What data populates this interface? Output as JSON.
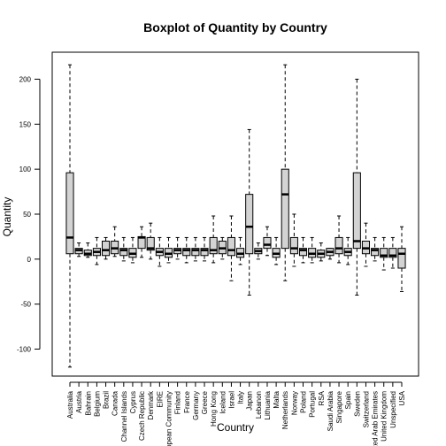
{
  "chart_data": {
    "type": "boxplot",
    "title": "Boxplot of Quantity by Country",
    "xlabel": "Country",
    "ylabel": "Quantity",
    "ylim": [
      -130,
      230
    ],
    "yticks": [
      -100,
      -50,
      0,
      50,
      100,
      150,
      200
    ],
    "box_color": "#d3d3d3",
    "categories": [
      "Australia",
      "Austria",
      "Bahrain",
      "Belgium",
      "Brazil",
      "Canada",
      "Channel Islands",
      "Cyprus",
      "Czech Republic",
      "Denmark",
      "EIRE",
      "European Community",
      "Finland",
      "France",
      "Germany",
      "Greece",
      "Hong Kong",
      "Iceland",
      "Israel",
      "Italy",
      "Japan",
      "Lebanon",
      "Lithuania",
      "Malta",
      "Netherlands",
      "Norway",
      "Poland",
      "Portugal",
      "RSA",
      "Saudi Arabia",
      "Singapore",
      "Spain",
      "Sweden",
      "Switzerland",
      "United Arab Emirates",
      "United Kingdom",
      "Unspecified",
      "USA"
    ],
    "boxes": [
      {
        "whisker_low": -120,
        "q1": 6,
        "median": 24,
        "q3": 96,
        "whisker_high": 216
      },
      {
        "whisker_low": 3,
        "q1": 6,
        "median": 10,
        "q3": 12,
        "whisker_high": 18
      },
      {
        "whisker_low": 2,
        "q1": 4,
        "median": 6,
        "q3": 10,
        "whisker_high": 18
      },
      {
        "whisker_low": -6,
        "q1": 4,
        "median": 8,
        "q3": 12,
        "whisker_high": 24
      },
      {
        "whisker_low": 0,
        "q1": 4,
        "median": 10,
        "q3": 20,
        "whisker_high": 24
      },
      {
        "whisker_low": 3,
        "q1": 6,
        "median": 12,
        "q3": 20,
        "whisker_high": 36
      },
      {
        "whisker_low": -2,
        "q1": 4,
        "median": 10,
        "q3": 12,
        "whisker_high": 24
      },
      {
        "whisker_low": -4,
        "q1": 2,
        "median": 6,
        "q3": 12,
        "whisker_high": 24
      },
      {
        "whisker_low": 2,
        "q1": 12,
        "median": 24,
        "q3": 25,
        "whisker_high": 36
      },
      {
        "whisker_low": 0,
        "q1": 10,
        "median": 12,
        "q3": 24,
        "whisker_high": 40
      },
      {
        "whisker_low": -8,
        "q1": 4,
        "median": 8,
        "q3": 12,
        "whisker_high": 24
      },
      {
        "whisker_low": -4,
        "q1": 2,
        "median": 6,
        "q3": 12,
        "whisker_high": 24
      },
      {
        "whisker_low": 0,
        "q1": 6,
        "median": 10,
        "q3": 12,
        "whisker_high": 24
      },
      {
        "whisker_low": -4,
        "q1": 4,
        "median": 10,
        "q3": 12,
        "whisker_high": 24
      },
      {
        "whisker_low": -2,
        "q1": 4,
        "median": 10,
        "q3": 12,
        "whisker_high": 24
      },
      {
        "whisker_low": -2,
        "q1": 4,
        "median": 10,
        "q3": 12,
        "whisker_high": 24
      },
      {
        "whisker_low": -4,
        "q1": 6,
        "median": 10,
        "q3": 24,
        "whisker_high": 48
      },
      {
        "whisker_low": 0,
        "q1": 6,
        "median": 12,
        "q3": 20,
        "whisker_high": 24
      },
      {
        "whisker_low": -24,
        "q1": 4,
        "median": 10,
        "q3": 24,
        "whisker_high": 48
      },
      {
        "whisker_low": -6,
        "q1": 2,
        "median": 6,
        "q3": 12,
        "whisker_high": 24
      },
      {
        "whisker_low": -40,
        "q1": 6,
        "median": 36,
        "q3": 72,
        "whisker_high": 144
      },
      {
        "whisker_low": 0,
        "q1": 6,
        "median": 9,
        "q3": 12,
        "whisker_high": 18
      },
      {
        "whisker_low": 4,
        "q1": 12,
        "median": 16,
        "q3": 24,
        "whisker_high": 36
      },
      {
        "whisker_low": -6,
        "q1": 2,
        "median": 6,
        "q3": 12,
        "whisker_high": 24
      },
      {
        "whisker_low": -24,
        "q1": 12,
        "median": 72,
        "q3": 100,
        "whisker_high": 216
      },
      {
        "whisker_low": -8,
        "q1": 6,
        "median": 12,
        "q3": 24,
        "whisker_high": 50
      },
      {
        "whisker_low": -4,
        "q1": 4,
        "median": 10,
        "q3": 12,
        "whisker_high": 24
      },
      {
        "whisker_low": -4,
        "q1": 2,
        "median": 6,
        "q3": 12,
        "whisker_high": 24
      },
      {
        "whisker_low": -2,
        "q1": 2,
        "median": 6,
        "q3": 10,
        "whisker_high": 18
      },
      {
        "whisker_low": 0,
        "q1": 4,
        "median": 8,
        "q3": 12,
        "whisker_high": 12
      },
      {
        "whisker_low": -4,
        "q1": 6,
        "median": 12,
        "q3": 24,
        "whisker_high": 48
      },
      {
        "whisker_low": -6,
        "q1": 4,
        "median": 8,
        "q3": 12,
        "whisker_high": 24
      },
      {
        "whisker_low": -40,
        "q1": 12,
        "median": 20,
        "q3": 96,
        "whisker_high": 200
      },
      {
        "whisker_low": -8,
        "q1": 6,
        "median": 12,
        "q3": 20,
        "whisker_high": 40
      },
      {
        "whisker_low": -2,
        "q1": 4,
        "median": 10,
        "q3": 12,
        "whisker_high": 24
      },
      {
        "whisker_low": -12,
        "q1": 2,
        "median": 4,
        "q3": 12,
        "whisker_high": 24
      },
      {
        "whisker_low": -10,
        "q1": 2,
        "median": 4,
        "q3": 12,
        "whisker_high": 24
      },
      {
        "whisker_low": -36,
        "q1": -10,
        "median": 6,
        "q3": 12,
        "whisker_high": 36
      }
    ]
  }
}
